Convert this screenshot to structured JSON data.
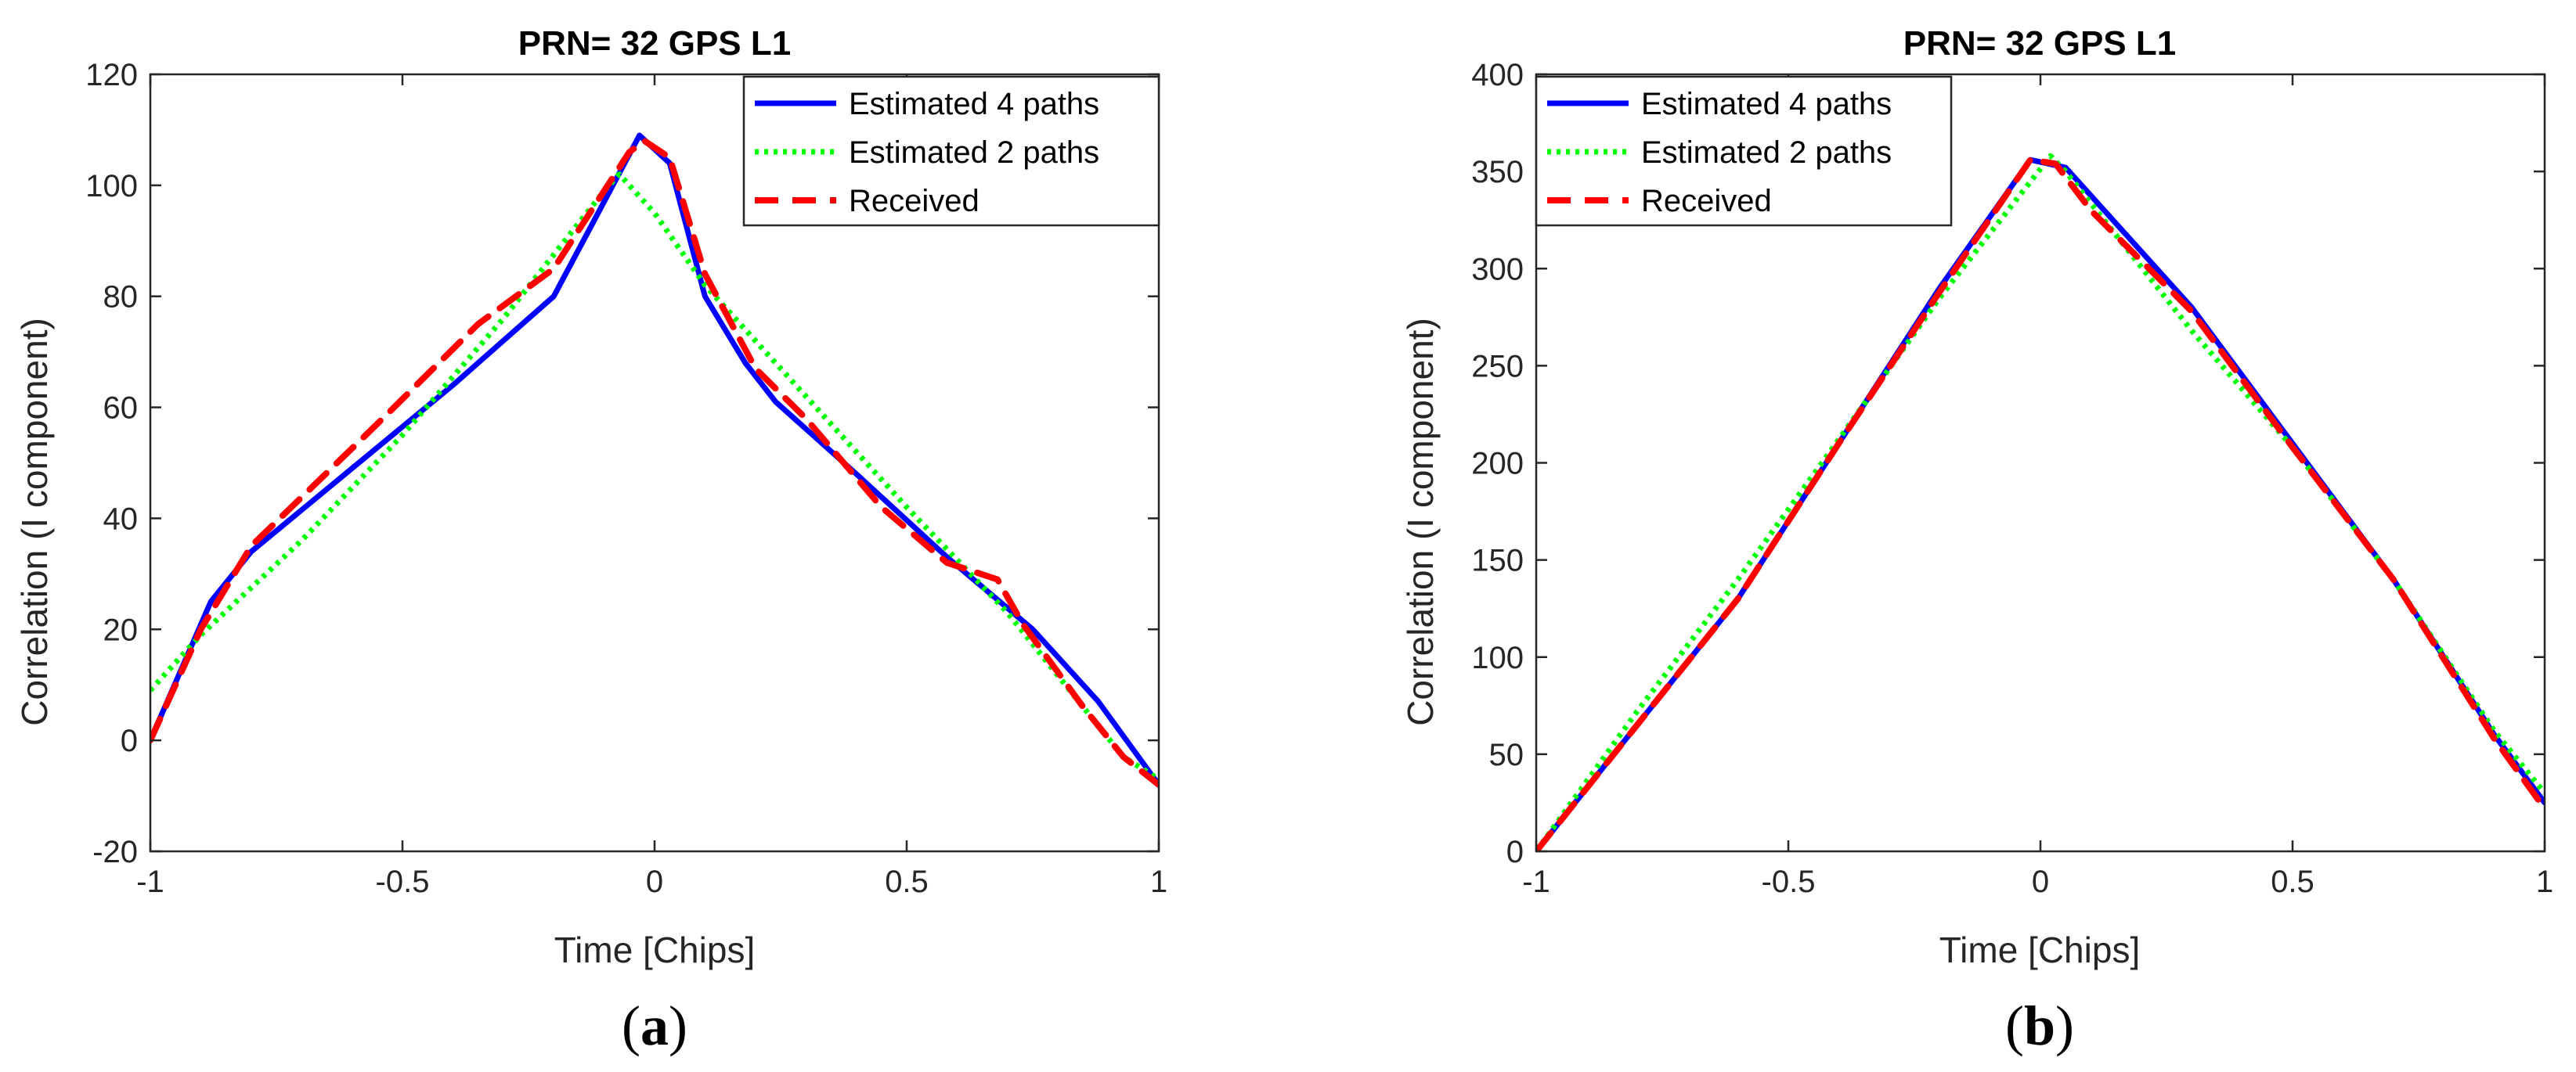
{
  "chart_data": [
    {
      "type": "line",
      "panel_label": "a",
      "title": "PRN= 32 GPS L1",
      "xlabel": "Time [Chips]",
      "ylabel": "Correlation (I component)",
      "xlim": [
        -1,
        1
      ],
      "ylim": [
        -20,
        120
      ],
      "xticks": [
        -1,
        -0.5,
        0,
        0.5,
        1
      ],
      "xtick_labels": [
        "-1",
        "-0.5",
        "0",
        "0.5",
        "1"
      ],
      "yticks": [
        -20,
        0,
        20,
        40,
        60,
        80,
        100,
        120
      ],
      "ytick_labels": [
        "-20",
        "0",
        "20",
        "40",
        "60",
        "80",
        "100",
        "120"
      ],
      "legend_position": "top-right",
      "series": [
        {
          "name": "Estimated 4 paths",
          "color": "#0000ff",
          "style": "solid",
          "x": [
            -1,
            -0.88,
            -0.8,
            -0.6,
            -0.4,
            -0.2,
            -0.03,
            0.03,
            0.1,
            0.18,
            0.24,
            0.4,
            0.58,
            0.75,
            0.88,
            1
          ],
          "y": [
            0,
            25,
            34,
            49,
            64,
            80,
            109,
            104,
            80,
            68,
            61,
            48,
            33,
            20,
            7,
            -8
          ]
        },
        {
          "name": "Estimated 2 paths",
          "color": "#00ff00",
          "style": "dotted",
          "x": [
            -1,
            -0.9,
            -0.7,
            -0.5,
            -0.3,
            -0.1,
            -0.07,
            0,
            0.1,
            0.3,
            0.5,
            0.7,
            0.85,
            0.93,
            1
          ],
          "y": [
            9,
            19,
            36,
            55,
            76,
            99,
            102,
            95,
            82,
            62,
            42,
            23,
            6,
            -3,
            -7
          ]
        },
        {
          "name": "Received",
          "color": "#ff0000",
          "style": "dashed",
          "x": [
            -1,
            -0.9,
            -0.8,
            -0.55,
            -0.35,
            -0.2,
            -0.05,
            -0.02,
            0.03,
            0.1,
            0.2,
            0.3,
            0.45,
            0.58,
            0.68,
            0.73,
            0.85,
            0.93,
            1
          ],
          "y": [
            0,
            20,
            35,
            57,
            75,
            85,
            106,
            108,
            105,
            84,
            67,
            58,
            42,
            32,
            29,
            21,
            6,
            -3,
            -8
          ]
        }
      ]
    },
    {
      "type": "line",
      "panel_label": "b",
      "title": "PRN= 32 GPS L1",
      "xlabel": "Time [Chips]",
      "ylabel": "Correlation (I component)",
      "xlim": [
        -1,
        1
      ],
      "ylim": [
        0,
        400
      ],
      "xticks": [
        -1,
        -0.5,
        0,
        0.5,
        1
      ],
      "xtick_labels": [
        "-1",
        "-0.5",
        "0",
        "0.5",
        "1"
      ],
      "yticks": [
        0,
        50,
        100,
        150,
        200,
        250,
        300,
        350,
        400
      ],
      "ytick_labels": [
        "0",
        "50",
        "100",
        "150",
        "200",
        "250",
        "300",
        "350",
        "400"
      ],
      "legend_position": "top-left",
      "series": [
        {
          "name": "Estimated 4 paths",
          "color": "#0000ff",
          "style": "solid",
          "x": [
            -1,
            -0.8,
            -0.6,
            -0.4,
            -0.2,
            -0.02,
            0.05,
            0.3,
            0.5,
            0.7,
            0.9,
            1
          ],
          "y": [
            0,
            65,
            130,
            210,
            290,
            356,
            352,
            280,
            210,
            140,
            60,
            25
          ]
        },
        {
          "name": "Estimated 2 paths",
          "color": "#00ff00",
          "style": "dotted",
          "x": [
            -1,
            -0.8,
            -0.6,
            -0.4,
            -0.2,
            0.02,
            0.05,
            0.3,
            0.5,
            0.7,
            0.9,
            1
          ],
          "y": [
            0,
            72,
            140,
            212,
            285,
            358,
            350,
            268,
            208,
            140,
            62,
            30
          ]
        },
        {
          "name": "Received",
          "color": "#ff0000",
          "style": "dashed",
          "x": [
            -1,
            -0.8,
            -0.6,
            -0.4,
            -0.2,
            -0.02,
            0.03,
            0.1,
            0.3,
            0.5,
            0.7,
            0.9,
            1
          ],
          "y": [
            0,
            65,
            130,
            210,
            288,
            356,
            354,
            330,
            278,
            208,
            140,
            58,
            22
          ]
        }
      ]
    }
  ]
}
